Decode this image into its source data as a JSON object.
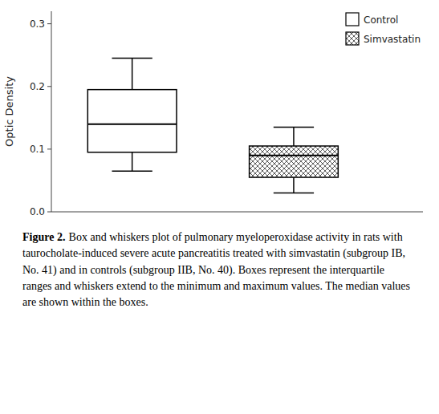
{
  "chart_data": {
    "type": "box",
    "y_label": "Optic Density",
    "ylim": [
      0.0,
      0.32
    ],
    "yticks": [
      {
        "value": 0.0,
        "label": "0.0"
      },
      0.1,
      0.2,
      0.3
    ],
    "tick_labels": "y",
    "legend": "upper right",
    "grid": false,
    "series": [
      {
        "name": "Control",
        "color": "#ffffff",
        "min": 0.065,
        "q1": 0.095,
        "median": 0.14,
        "q3": 0.195,
        "max": 0.245
      },
      {
        "name": "Simvastatin",
        "color": "#ffffff",
        "min": 0.03,
        "q1": 0.055,
        "median": 0.09,
        "q3": 0.105,
        "max": 0.135
      }
    ],
    "caption": {
      "label": "Figure 2.",
      "text": "Box and whiskers plot of pulmonary myeloperoxidase activity in rats with taurocholate-induced severe acute pancreatitis treated with simvastatin (subgroup IB, No. 41) and in controls (subgroup IIB, No. 40). Boxes represent the interquartile ranges and whiskers extend to the minimum and maximum values. The median values are shown within the boxes."
    }
  }
}
